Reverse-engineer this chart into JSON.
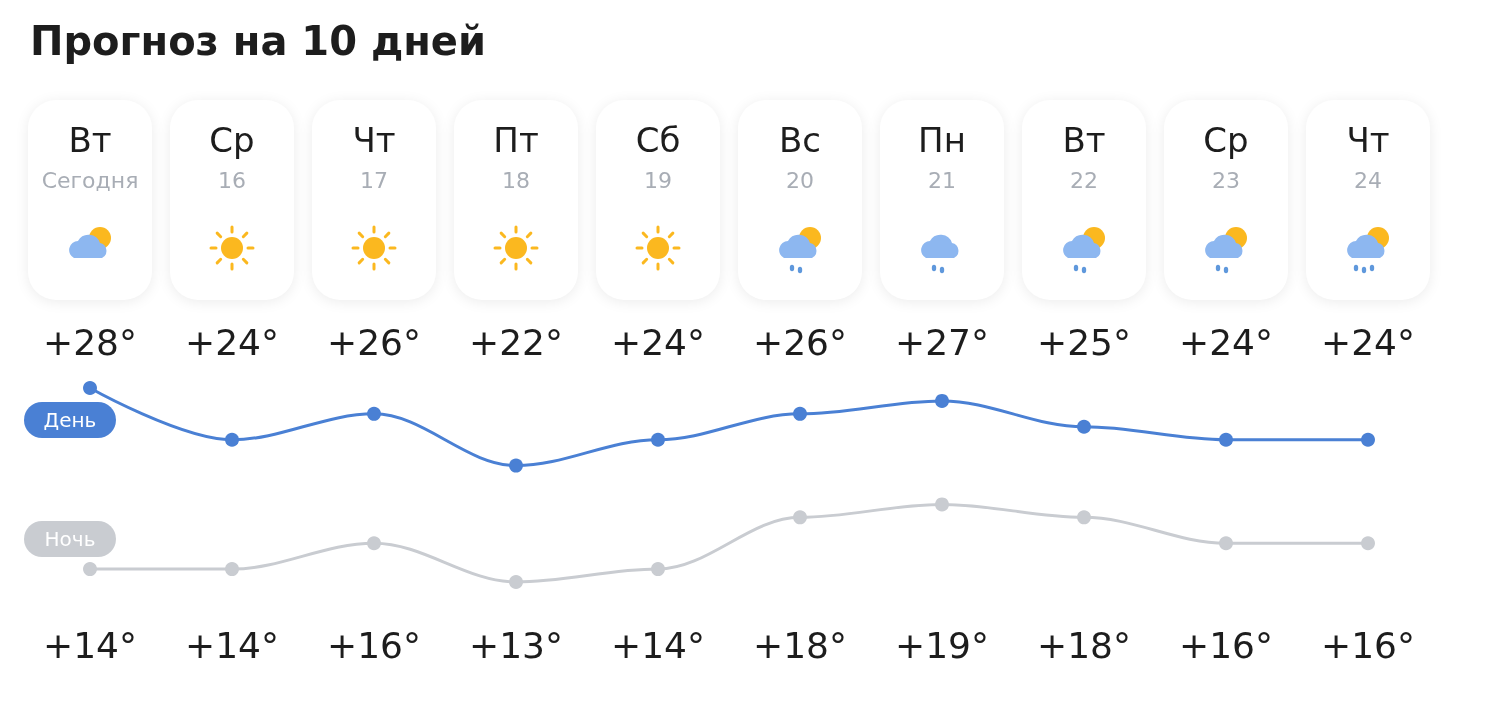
{
  "chart_data": {
    "type": "line",
    "title": "Прогноз на 10 дней",
    "categories": [
      "Вт\nСегодня",
      "Ср\n16",
      "Чт\n17",
      "Пт\n18",
      "Сб\n19",
      "Вс\n20",
      "Пн\n21",
      "Вт\n22",
      "Ср\n23",
      "Чт\n24"
    ],
    "series": [
      {
        "name": "День",
        "color": "#4a80d4",
        "values": [
          28,
          24,
          26,
          22,
          24,
          26,
          27,
          25,
          24,
          24
        ],
        "value_labels": [
          "+28°",
          "+24°",
          "+26°",
          "+22°",
          "+24°",
          "+26°",
          "+27°",
          "+25°",
          "+24°",
          "+24°"
        ]
      },
      {
        "name": "Ночь",
        "color": "#c9ccd1",
        "values": [
          14,
          14,
          16,
          13,
          14,
          18,
          19,
          18,
          16,
          16
        ],
        "value_labels": [
          "+14°",
          "+14°",
          "+16°",
          "+13°",
          "+14°",
          "+18°",
          "+19°",
          "+18°",
          "+16°",
          "+16°"
        ]
      }
    ],
    "marker": "circle",
    "line_style": "solid",
    "legend": false,
    "grid": false,
    "tick_labels": "x"
  }
}
